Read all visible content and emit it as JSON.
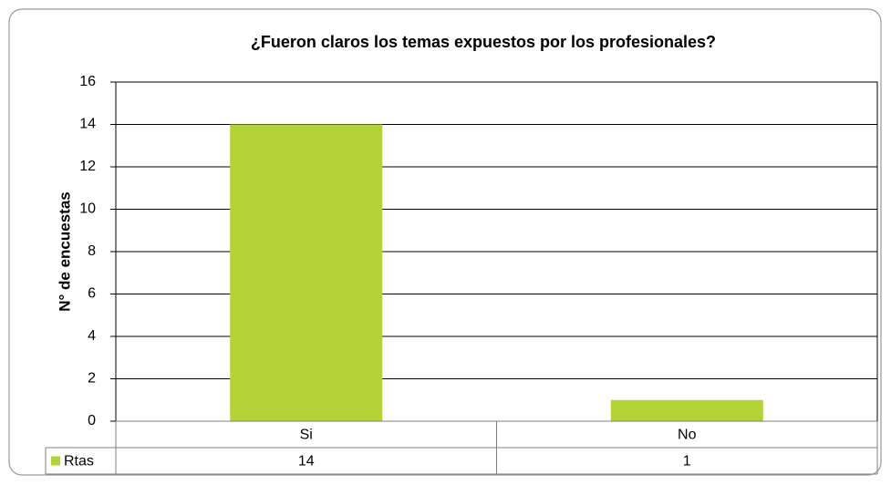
{
  "chart_data": {
    "type": "bar",
    "title": "¿Fueron claros los temas expuestos por los profesionales?",
    "y_label": "N° de encuestas",
    "categories": [
      "Si",
      "No"
    ],
    "series": [
      {
        "name": "Rtas",
        "color": "#b2d235",
        "values": [
          14,
          1
        ]
      }
    ],
    "ylim": [
      0,
      16
    ],
    "yticks": [
      0,
      2,
      4,
      6,
      8,
      10,
      12,
      14,
      16
    ],
    "grid": true,
    "data_table": true
  }
}
